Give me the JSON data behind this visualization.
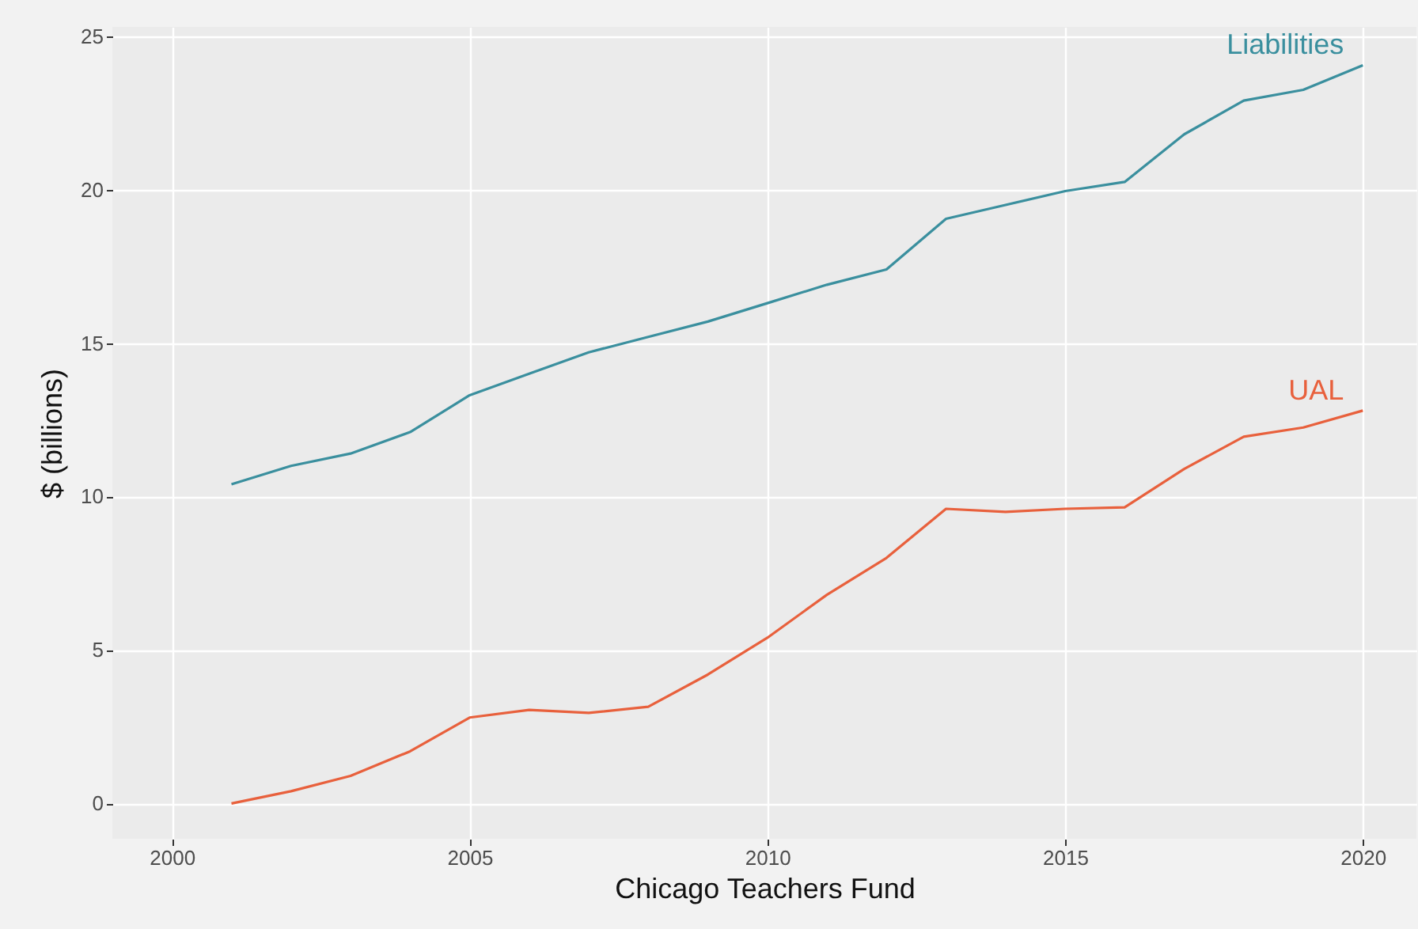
{
  "chart_data": {
    "type": "line",
    "xlabel": "Chicago Teachers Fund",
    "ylabel": "$ (billions)",
    "x": [
      2001,
      2002,
      2003,
      2004,
      2005,
      2006,
      2007,
      2008,
      2009,
      2010,
      2011,
      2012,
      2013,
      2014,
      2015,
      2016,
      2017,
      2018,
      2019,
      2020
    ],
    "series": [
      {
        "name": "Liabilities",
        "color": "#3a8f9e",
        "values": [
          10.4,
          11.0,
          11.4,
          12.1,
          13.3,
          14.0,
          14.7,
          15.2,
          15.7,
          16.3,
          16.9,
          17.4,
          19.05,
          19.5,
          19.95,
          20.25,
          21.8,
          22.9,
          23.25,
          24.05
        ]
      },
      {
        "name": "UAL",
        "color": "#e8603c",
        "values": [
          0,
          0.4,
          0.9,
          1.7,
          2.8,
          3.05,
          2.95,
          3.15,
          4.2,
          5.4,
          6.8,
          8.0,
          9.6,
          9.5,
          9.6,
          9.65,
          10.9,
          11.95,
          12.25,
          12.8
        ]
      }
    ],
    "xlim": [
      1999,
      2020.9
    ],
    "xticks": [
      2000,
      2005,
      2010,
      2015,
      2020
    ],
    "ylim": [
      -1.15,
      25.3
    ],
    "yticks": [
      0,
      5,
      10,
      15,
      20,
      25
    ],
    "grid": true,
    "legend": false,
    "marker": "none",
    "line_style": "solid"
  }
}
